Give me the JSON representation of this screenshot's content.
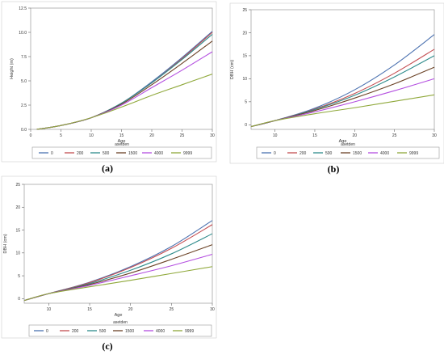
{
  "palette": [
    "#4c72b0",
    "#c44e52",
    "#2e8b8b",
    "#6b4226",
    "#b44fe0",
    "#8fa83a"
  ],
  "chart_data": [
    {
      "panel_label": "(a)",
      "type": "line",
      "xlabel": "Age",
      "ylabel": "Height (m)",
      "xlim": [
        0,
        30
      ],
      "ylim": [
        0,
        12.5
      ],
      "xticks": [
        0,
        5,
        10,
        15,
        20,
        25,
        30
      ],
      "yticks": [
        0.0,
        2.5,
        5.0,
        7.5,
        10.0,
        12.5
      ],
      "ytick_labels": [
        "0.0",
        "2.5",
        "5.0",
        "7.5",
        "10.0",
        "12.5"
      ],
      "grid": false,
      "legend": {
        "title": "asetden",
        "position": "bottom",
        "entries": [
          "0",
          "200",
          "500",
          "1500",
          "4000",
          "9999"
        ]
      },
      "x": [
        1,
        5,
        10,
        15,
        20,
        25,
        30
      ],
      "series": [
        {
          "name": "0",
          "values": [
            0.0,
            0.4,
            1.2,
            2.7,
            4.9,
            7.4,
            10.1
          ]
        },
        {
          "name": "200",
          "values": [
            0.0,
            0.4,
            1.2,
            2.7,
            4.8,
            7.3,
            10.0
          ]
        },
        {
          "name": "500",
          "values": [
            0.0,
            0.4,
            1.2,
            2.7,
            4.8,
            7.2,
            9.8
          ]
        },
        {
          "name": "1500",
          "values": [
            0.0,
            0.4,
            1.2,
            2.6,
            4.6,
            6.8,
            9.1
          ]
        },
        {
          "name": "4000",
          "values": [
            0.0,
            0.4,
            1.2,
            2.5,
            4.3,
            6.1,
            8.0
          ]
        },
        {
          "name": "9999",
          "values": [
            0.0,
            0.4,
            1.2,
            2.3,
            3.5,
            4.6,
            5.7
          ]
        }
      ]
    },
    {
      "panel_label": "(b)",
      "type": "line",
      "xlabel": "Age",
      "ylabel": "DBH (cm)",
      "xlim": [
        7,
        30
      ],
      "ylim": [
        -1,
        25
      ],
      "xticks": [
        10,
        15,
        20,
        25,
        30
      ],
      "yticks": [
        0,
        5,
        10,
        15,
        20,
        25
      ],
      "ytick_labels": [
        "0",
        "5",
        "10",
        "15",
        "20",
        "25"
      ],
      "grid": false,
      "legend": {
        "title": "asetden",
        "position": "bottom",
        "entries": [
          "0",
          "200",
          "500",
          "1500",
          "4000",
          "9999"
        ]
      },
      "x": [
        7,
        10,
        15,
        20,
        25,
        30
      ],
      "series": [
        {
          "name": "0",
          "values": [
            -0.4,
            0.9,
            3.6,
            7.6,
            13.0,
            19.6
          ]
        },
        {
          "name": "200",
          "values": [
            -0.4,
            0.9,
            3.4,
            6.8,
            11.2,
            16.4
          ]
        },
        {
          "name": "500",
          "values": [
            -0.4,
            0.9,
            3.3,
            6.4,
            10.4,
            15.0
          ]
        },
        {
          "name": "1500",
          "values": [
            -0.4,
            0.9,
            3.1,
            5.8,
            8.9,
            12.5
          ]
        },
        {
          "name": "4000",
          "values": [
            -0.4,
            0.9,
            2.8,
            5.0,
            7.4,
            10.0
          ]
        },
        {
          "name": "9999",
          "values": [
            -0.4,
            0.9,
            2.4,
            3.7,
            5.1,
            6.5
          ]
        }
      ]
    },
    {
      "panel_label": "(c)",
      "type": "line",
      "xlabel": "Age",
      "ylabel": "DBH (cm)",
      "xlim": [
        7,
        30
      ],
      "ylim": [
        -1,
        25
      ],
      "xticks": [
        10,
        15,
        20,
        25,
        30
      ],
      "yticks": [
        0,
        5,
        10,
        15,
        20,
        25
      ],
      "ytick_labels": [
        "0",
        "5",
        "10",
        "15",
        "20",
        "25"
      ],
      "grid": false,
      "legend": {
        "title": "asetden",
        "position": "bottom",
        "entries": [
          "0",
          "200",
          "500",
          "1500",
          "4000",
          "9999"
        ]
      },
      "x": [
        7,
        10,
        15,
        20,
        25,
        30
      ],
      "series": [
        {
          "name": "0",
          "values": [
            -0.4,
            1.1,
            3.6,
            7.0,
            11.4,
            17.1
          ]
        },
        {
          "name": "200",
          "values": [
            -0.4,
            1.1,
            3.5,
            6.8,
            11.0,
            16.2
          ]
        },
        {
          "name": "500",
          "values": [
            -0.4,
            1.1,
            3.3,
            6.2,
            9.8,
            14.2
          ]
        },
        {
          "name": "1500",
          "values": [
            -0.4,
            1.1,
            3.1,
            5.6,
            8.6,
            11.8
          ]
        },
        {
          "name": "4000",
          "values": [
            -0.4,
            1.1,
            2.9,
            5.0,
            7.2,
            9.7
          ]
        },
        {
          "name": "9999",
          "values": [
            -0.4,
            1.1,
            2.6,
            4.0,
            5.5,
            7.0
          ]
        }
      ]
    }
  ]
}
